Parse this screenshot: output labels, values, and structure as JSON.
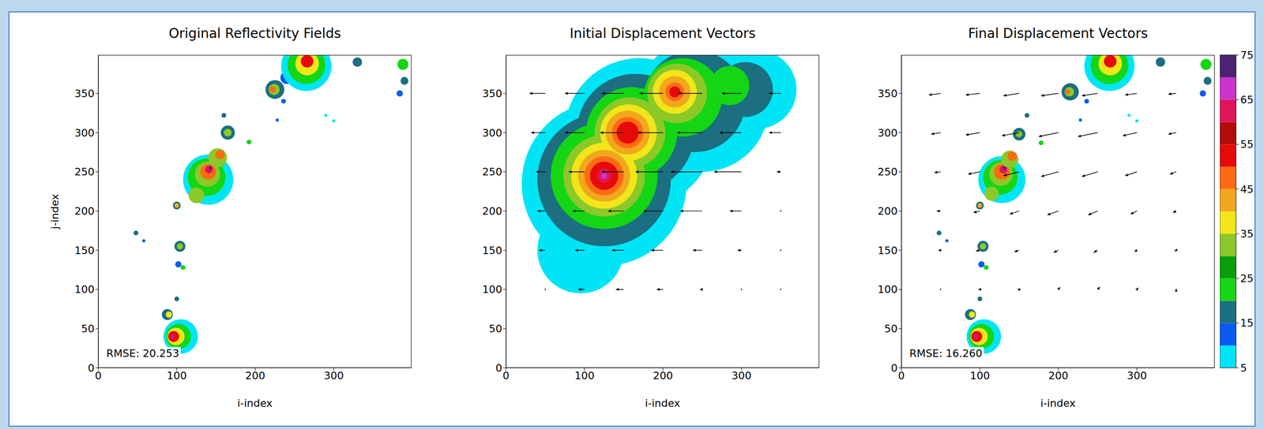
{
  "chart_data": [
    {
      "type": "scatter",
      "title": "Original Reflectivity Fields",
      "xlabel": "i-index",
      "ylabel": "j-index",
      "xlim": [
        0,
        399
      ],
      "ylim": [
        0,
        399
      ],
      "xticks": [
        0,
        100,
        200,
        300
      ],
      "yticks": [
        0,
        50,
        100,
        150,
        200,
        250,
        300,
        350
      ],
      "annotation": "RMSE: 20.253",
      "cells": [
        [
          105,
          40,
          22,
          8
        ],
        [
          102,
          40,
          16,
          22
        ],
        [
          99,
          40,
          11,
          37
        ],
        [
          96,
          40,
          7,
          52
        ],
        [
          95,
          40,
          3,
          62
        ],
        [
          88,
          68,
          7,
          18
        ],
        [
          90,
          68,
          4,
          37
        ],
        [
          100,
          88,
          3,
          18
        ],
        [
          102,
          132,
          4,
          12
        ],
        [
          108,
          128,
          3,
          22
        ],
        [
          104,
          155,
          7,
          18
        ],
        [
          104,
          155,
          4,
          32
        ],
        [
          100,
          207,
          5,
          18
        ],
        [
          100,
          207,
          3,
          42
        ],
        [
          140,
          240,
          32,
          8
        ],
        [
          138,
          243,
          24,
          22
        ],
        [
          139,
          247,
          16,
          32
        ],
        [
          140,
          250,
          10,
          47
        ],
        [
          141,
          253,
          5,
          62
        ],
        [
          143,
          255,
          2,
          72
        ],
        [
          125,
          220,
          10,
          32
        ],
        [
          152,
          268,
          12,
          32
        ],
        [
          155,
          272,
          6,
          47
        ],
        [
          165,
          300,
          9,
          18
        ],
        [
          165,
          300,
          5,
          32
        ],
        [
          192,
          288,
          3,
          22
        ],
        [
          225,
          355,
          12,
          18
        ],
        [
          224,
          355,
          7,
          32
        ],
        [
          222,
          355,
          4,
          47
        ],
        [
          240,
          370,
          8,
          12
        ],
        [
          265,
          385,
          32,
          8
        ],
        [
          265,
          386,
          24,
          22
        ],
        [
          266,
          388,
          15,
          37
        ],
        [
          266,
          391,
          8,
          52
        ],
        [
          330,
          390,
          6,
          18
        ],
        [
          388,
          387,
          7,
          22
        ],
        [
          390,
          366,
          5,
          18
        ],
        [
          384,
          350,
          4,
          12
        ],
        [
          236,
          340,
          3,
          12
        ],
        [
          160,
          322,
          3,
          18
        ],
        [
          228,
          316,
          2,
          12
        ],
        [
          48,
          172,
          3,
          18
        ],
        [
          58,
          162,
          2,
          12
        ],
        [
          290,
          322,
          2,
          8
        ],
        [
          300,
          315,
          2,
          8
        ]
      ]
    },
    {
      "type": "scatter",
      "title": "Initial Displacement Vectors",
      "xlabel": "i-index",
      "xlim": [
        0,
        399
      ],
      "ylim": [
        0,
        399
      ],
      "xticks": [
        0,
        100,
        200,
        300
      ],
      "yticks": [
        0,
        50,
        100,
        150,
        200,
        250,
        300,
        350
      ],
      "cells": [
        [
          125,
          235,
          105,
          8
        ],
        [
          170,
          300,
          95,
          8
        ],
        [
          250,
          335,
          85,
          8
        ],
        [
          320,
          355,
          50,
          8
        ],
        [
          95,
          150,
          55,
          8
        ],
        [
          125,
          240,
          85,
          17
        ],
        [
          165,
          300,
          75,
          17
        ],
        [
          240,
          340,
          65,
          17
        ],
        [
          305,
          355,
          35,
          17
        ],
        [
          125,
          245,
          68,
          22
        ],
        [
          160,
          300,
          58,
          22
        ],
        [
          225,
          345,
          50,
          22
        ],
        [
          285,
          360,
          25,
          22
        ],
        [
          125,
          245,
          52,
          30
        ],
        [
          158,
          300,
          45,
          30
        ],
        [
          218,
          350,
          38,
          30
        ],
        [
          125,
          245,
          42,
          37
        ],
        [
          156,
          300,
          36,
          37
        ],
        [
          215,
          352,
          28,
          37
        ],
        [
          125,
          245,
          33,
          42
        ],
        [
          155,
          300,
          28,
          42
        ],
        [
          215,
          352,
          20,
          42
        ],
        [
          125,
          245,
          25,
          48
        ],
        [
          155,
          300,
          20,
          48
        ],
        [
          215,
          352,
          12,
          48
        ],
        [
          125,
          245,
          18,
          52
        ],
        [
          155,
          300,
          14,
          52
        ],
        [
          215,
          352,
          7,
          52
        ],
        [
          125,
          245,
          9,
          62
        ],
        [
          125,
          245,
          4,
          67
        ]
      ],
      "vectors": [
        [
          50,
          350,
          -20,
          0
        ],
        [
          100,
          350,
          -25,
          0
        ],
        [
          150,
          350,
          -28,
          0
        ],
        [
          200,
          350,
          -30,
          0
        ],
        [
          250,
          350,
          -30,
          0
        ],
        [
          300,
          350,
          -25,
          0
        ],
        [
          350,
          350,
          -15,
          0
        ],
        [
          50,
          300,
          -18,
          0
        ],
        [
          100,
          300,
          -25,
          0
        ],
        [
          150,
          300,
          -30,
          0
        ],
        [
          200,
          300,
          -32,
          0
        ],
        [
          250,
          300,
          -32,
          0
        ],
        [
          300,
          300,
          -28,
          0
        ],
        [
          350,
          300,
          -15,
          0
        ],
        [
          50,
          250,
          -12,
          0
        ],
        [
          100,
          250,
          -20,
          0
        ],
        [
          150,
          250,
          -28,
          0
        ],
        [
          200,
          250,
          -35,
          0
        ],
        [
          250,
          250,
          -40,
          0
        ],
        [
          300,
          250,
          -35,
          0
        ],
        [
          350,
          250,
          -5,
          0
        ],
        [
          50,
          200,
          -10,
          0
        ],
        [
          100,
          200,
          -15,
          0
        ],
        [
          150,
          200,
          -20,
          0
        ],
        [
          200,
          200,
          -25,
          0
        ],
        [
          250,
          200,
          -28,
          0
        ],
        [
          300,
          200,
          -15,
          0
        ],
        [
          350,
          200,
          0,
          0
        ],
        [
          50,
          150,
          -8,
          0
        ],
        [
          100,
          150,
          -12,
          0
        ],
        [
          150,
          150,
          -15,
          0
        ],
        [
          200,
          150,
          -15,
          0
        ],
        [
          250,
          150,
          -12,
          0
        ],
        [
          300,
          150,
          -5,
          0
        ],
        [
          350,
          150,
          0,
          0
        ],
        [
          50,
          100,
          0,
          0
        ],
        [
          100,
          100,
          -8,
          0
        ],
        [
          150,
          100,
          -10,
          0
        ],
        [
          200,
          100,
          -8,
          0
        ],
        [
          250,
          100,
          -3,
          0
        ],
        [
          300,
          100,
          0,
          0
        ],
        [
          350,
          100,
          0,
          0
        ]
      ]
    },
    {
      "type": "scatter",
      "title": "Final Displacement Vectors",
      "xlabel": "i-index",
      "xlim": [
        0,
        399
      ],
      "ylim": [
        0,
        399
      ],
      "xticks": [
        0,
        100,
        200,
        300
      ],
      "yticks": [
        0,
        50,
        100,
        150,
        200,
        250,
        300,
        350
      ],
      "annotation": "RMSE: 16.260",
      "cells": [
        [
          105,
          40,
          22,
          8
        ],
        [
          102,
          40,
          16,
          22
        ],
        [
          99,
          40,
          11,
          37
        ],
        [
          96,
          40,
          7,
          52
        ],
        [
          95,
          40,
          3,
          62
        ],
        [
          88,
          68,
          7,
          18
        ],
        [
          90,
          68,
          4,
          37
        ],
        [
          100,
          88,
          3,
          18
        ],
        [
          102,
          132,
          4,
          12
        ],
        [
          108,
          128,
          3,
          22
        ],
        [
          104,
          155,
          7,
          18
        ],
        [
          104,
          155,
          4,
          32
        ],
        [
          100,
          207,
          5,
          18
        ],
        [
          100,
          207,
          3,
          42
        ],
        [
          128,
          240,
          30,
          8
        ],
        [
          126,
          243,
          22,
          22
        ],
        [
          127,
          247,
          15,
          32
        ],
        [
          128,
          250,
          10,
          47
        ],
        [
          130,
          253,
          5,
          62
        ],
        [
          131,
          255,
          2,
          72
        ],
        [
          115,
          222,
          9,
          32
        ],
        [
          138,
          266,
          11,
          32
        ],
        [
          141,
          270,
          6,
          47
        ],
        [
          150,
          298,
          8,
          18
        ],
        [
          150,
          298,
          4,
          32
        ],
        [
          178,
          287,
          3,
          22
        ],
        [
          215,
          352,
          11,
          18
        ],
        [
          214,
          352,
          6,
          32
        ],
        [
          212,
          352,
          3,
          47
        ],
        [
          265,
          385,
          32,
          8
        ],
        [
          265,
          386,
          24,
          22
        ],
        [
          266,
          388,
          15,
          37
        ],
        [
          266,
          391,
          8,
          52
        ],
        [
          330,
          390,
          6,
          18
        ],
        [
          388,
          387,
          7,
          22
        ],
        [
          390,
          366,
          5,
          18
        ],
        [
          384,
          350,
          4,
          12
        ],
        [
          236,
          340,
          3,
          12
        ],
        [
          160,
          322,
          3,
          18
        ],
        [
          228,
          316,
          2,
          12
        ],
        [
          48,
          172,
          3,
          18
        ],
        [
          58,
          162,
          2,
          12
        ],
        [
          290,
          322,
          2,
          8
        ],
        [
          300,
          315,
          2,
          8
        ]
      ],
      "vectors": [
        [
          50,
          350,
          -15,
          -2
        ],
        [
          100,
          350,
          -18,
          -2
        ],
        [
          150,
          350,
          -20,
          -3
        ],
        [
          200,
          350,
          -22,
          -3
        ],
        [
          250,
          350,
          -20,
          -3
        ],
        [
          300,
          350,
          -15,
          -2
        ],
        [
          350,
          350,
          -10,
          -1
        ],
        [
          50,
          300,
          -12,
          -2
        ],
        [
          100,
          300,
          -18,
          -3
        ],
        [
          150,
          300,
          -22,
          -4
        ],
        [
          200,
          300,
          -25,
          -5
        ],
        [
          250,
          300,
          -25,
          -5
        ],
        [
          300,
          300,
          -18,
          -4
        ],
        [
          350,
          300,
          -10,
          -2
        ],
        [
          50,
          250,
          -8,
          -1
        ],
        [
          100,
          250,
          -15,
          -3
        ],
        [
          150,
          250,
          -20,
          -5
        ],
        [
          200,
          250,
          -22,
          -6
        ],
        [
          250,
          250,
          -20,
          -6
        ],
        [
          300,
          250,
          -15,
          -5
        ],
        [
          350,
          250,
          -8,
          -3
        ],
        [
          50,
          200,
          -5,
          0
        ],
        [
          100,
          200,
          -8,
          -2
        ],
        [
          150,
          200,
          -12,
          -4
        ],
        [
          200,
          200,
          -14,
          -5
        ],
        [
          250,
          200,
          -12,
          -5
        ],
        [
          300,
          200,
          -8,
          -4
        ],
        [
          350,
          200,
          -4,
          -2
        ],
        [
          50,
          150,
          -3,
          0
        ],
        [
          100,
          150,
          -5,
          -1
        ],
        [
          150,
          150,
          -6,
          -2
        ],
        [
          200,
          150,
          -6,
          -3
        ],
        [
          250,
          150,
          -5,
          -3
        ],
        [
          300,
          150,
          -3,
          -2
        ],
        [
          350,
          150,
          -2,
          -1
        ],
        [
          50,
          100,
          0,
          0
        ],
        [
          100,
          100,
          -2,
          0
        ],
        [
          150,
          100,
          -2,
          1
        ],
        [
          200,
          100,
          2,
          3
        ],
        [
          250,
          100,
          3,
          3
        ],
        [
          300,
          100,
          2,
          2
        ],
        [
          350,
          100,
          0,
          1
        ]
      ],
      "colorbar": {
        "levels": [
          5,
          10,
          15,
          20,
          25,
          30,
          35,
          40,
          45,
          50,
          55,
          60,
          65,
          70,
          75
        ],
        "colors": [
          "#00e5f5",
          "#0a5cf0",
          "#1b6f80",
          "#14d614",
          "#0a9e0a",
          "#8cc828",
          "#f2e51a",
          "#f0a81e",
          "#ff6a14",
          "#e60a0a",
          "#b30a0a",
          "#e0145a",
          "#cc33cc",
          "#4a2473"
        ],
        "ticks": [
          5,
          15,
          25,
          35,
          45,
          55,
          65,
          75
        ]
      }
    }
  ]
}
